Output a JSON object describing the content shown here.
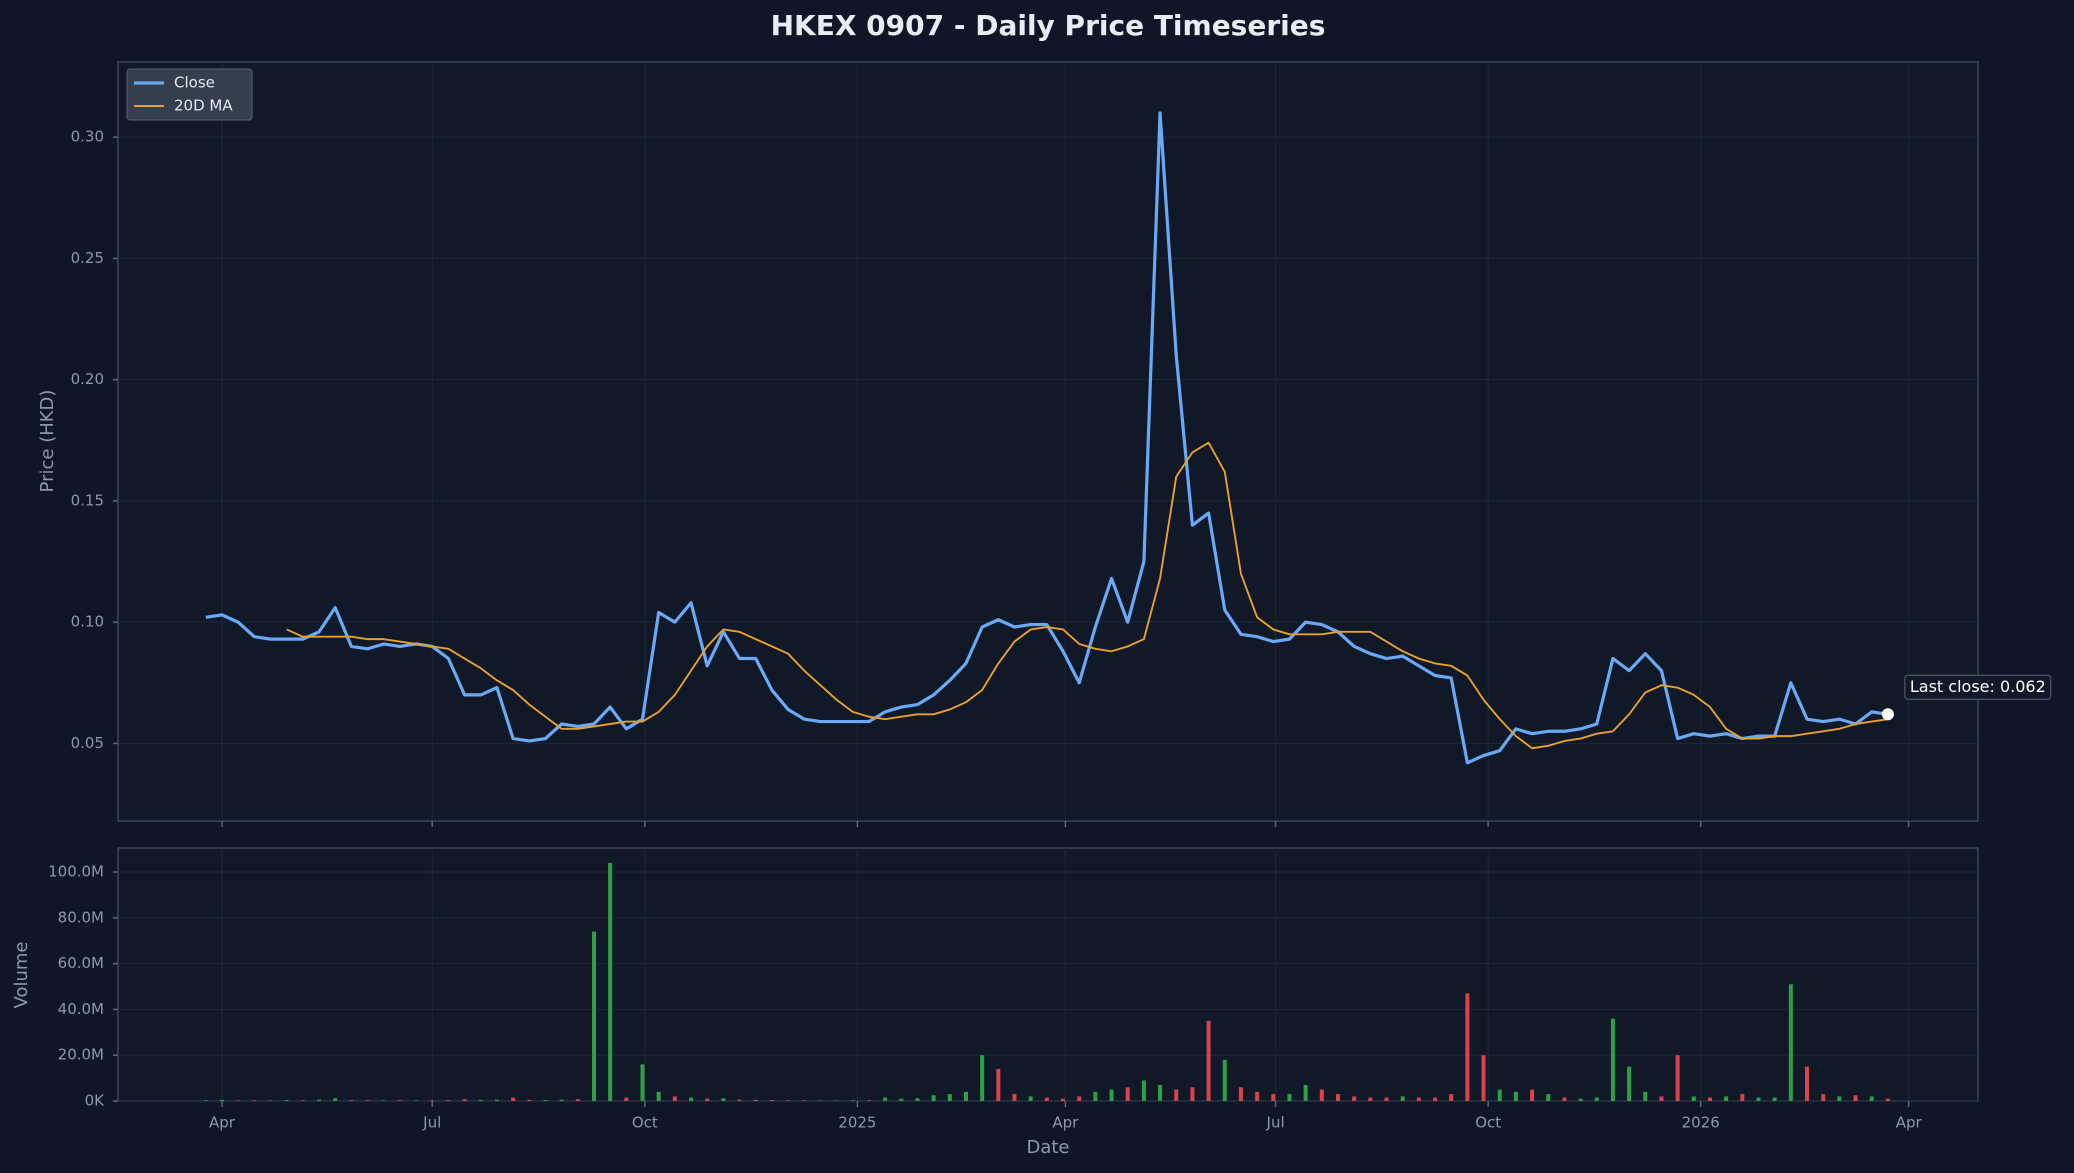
{
  "chart_data": {
    "type": "line",
    "title": "HKEX 0907 - Daily Price Timeseries",
    "xlabel": "Date",
    "ylabel": "Price (HKD)",
    "grid": true,
    "legend": "upper left",
    "xlim": [
      "2024-02-16",
      "2026-05-01"
    ],
    "xticks": [
      {
        "value": "2024-04-01",
        "label": "Apr"
      },
      {
        "value": "2024-07-01",
        "label": "Jul"
      },
      {
        "value": "2024-10-01",
        "label": "Oct"
      },
      {
        "value": "2025-01-01",
        "label": "2025"
      },
      {
        "value": "2025-04-01",
        "label": "Apr"
      },
      {
        "value": "2025-07-01",
        "label": "Jul"
      },
      {
        "value": "2025-10-01",
        "label": "Oct"
      },
      {
        "value": "2026-01-01",
        "label": "2026"
      },
      {
        "value": "2026-04-01",
        "label": "Apr"
      }
    ],
    "ylim": [
      0.018,
      0.331
    ],
    "yticks": [
      0.05,
      {
        "value": 0.1,
        "label": "0.10"
      },
      0.15,
      {
        "value": 0.2,
        "label": "0.20"
      },
      0.25,
      {
        "value": 0.3,
        "label": "0.30"
      }
    ],
    "x": [
      "2024-03-25",
      "2024-04-01",
      "2024-04-08",
      "2024-04-15",
      "2024-04-22",
      "2024-04-29",
      "2024-05-06",
      "2024-05-13",
      "2024-05-20",
      "2024-05-27",
      "2024-06-03",
      "2024-06-10",
      "2024-06-17",
      "2024-06-24",
      "2024-07-01",
      "2024-07-08",
      "2024-07-15",
      "2024-07-22",
      "2024-07-29",
      "2024-08-05",
      "2024-08-12",
      "2024-08-19",
      "2024-08-26",
      "2024-09-02",
      "2024-09-09",
      "2024-09-16",
      "2024-09-23",
      "2024-09-30",
      "2024-10-07",
      "2024-10-14",
      "2024-10-21",
      "2024-10-28",
      "2024-11-04",
      "2024-11-11",
      "2024-11-18",
      "2024-11-25",
      "2024-12-02",
      "2024-12-09",
      "2024-12-16",
      "2024-12-23",
      "2024-12-30",
      "2025-01-06",
      "2025-01-13",
      "2025-01-20",
      "2025-01-27",
      "2025-02-03",
      "2025-02-10",
      "2025-02-17",
      "2025-02-24",
      "2025-03-03",
      "2025-03-10",
      "2025-03-17",
      "2025-03-24",
      "2025-03-31",
      "2025-04-07",
      "2025-04-14",
      "2025-04-21",
      "2025-04-28",
      "2025-05-05",
      "2025-05-12",
      "2025-05-19",
      "2025-05-26",
      "2025-06-02",
      "2025-06-09",
      "2025-06-16",
      "2025-06-23",
      "2025-06-30",
      "2025-07-07",
      "2025-07-14",
      "2025-07-21",
      "2025-07-28",
      "2025-08-04",
      "2025-08-11",
      "2025-08-18",
      "2025-08-25",
      "2025-09-01",
      "2025-09-08",
      "2025-09-15",
      "2025-09-22",
      "2025-09-29",
      "2025-10-06",
      "2025-10-13",
      "2025-10-20",
      "2025-10-27",
      "2025-11-03",
      "2025-11-10",
      "2025-11-17",
      "2025-11-24",
      "2025-12-01",
      "2025-12-08",
      "2025-12-15",
      "2025-12-22",
      "2025-12-29",
      "2026-01-05",
      "2026-01-12",
      "2026-01-19",
      "2026-01-26",
      "2026-02-02",
      "2026-02-09",
      "2026-02-16",
      "2026-02-23",
      "2026-03-02",
      "2026-03-09",
      "2026-03-16",
      "2026-03-23"
    ],
    "series": [
      {
        "name": "Close",
        "color": "#6aa9f5",
        "values": [
          0.102,
          0.103,
          0.1,
          0.094,
          0.093,
          0.093,
          0.093,
          0.096,
          0.106,
          0.09,
          0.089,
          0.091,
          0.09,
          0.091,
          0.09,
          0.085,
          0.07,
          0.07,
          0.073,
          0.052,
          0.051,
          0.052,
          0.058,
          0.057,
          0.058,
          0.065,
          0.056,
          0.06,
          0.104,
          0.1,
          0.108,
          0.082,
          0.096,
          0.085,
          0.085,
          0.072,
          0.064,
          0.06,
          0.059,
          0.059,
          0.059,
          0.059,
          0.063,
          0.065,
          0.066,
          0.07,
          0.076,
          0.083,
          0.098,
          0.101,
          0.098,
          0.099,
          0.099,
          0.088,
          0.075,
          0.098,
          0.118,
          0.1,
          0.125,
          0.31,
          0.21,
          0.14,
          0.145,
          0.105,
          0.095,
          0.094,
          0.092,
          0.093,
          0.1,
          0.099,
          0.096,
          0.09,
          0.087,
          0.085,
          0.086,
          0.082,
          0.078,
          0.077,
          0.042,
          0.045,
          0.047,
          0.056,
          0.054,
          0.055,
          0.055,
          0.056,
          0.058,
          0.085,
          0.08,
          0.087,
          0.08,
          0.052,
          0.054,
          0.053,
          0.054,
          0.052,
          0.053,
          0.053,
          0.075,
          0.06,
          0.059,
          0.06,
          0.058,
          0.063,
          0.062
        ]
      },
      {
        "name": "20D MA",
        "color": "#e8a02a",
        "values": [
          null,
          null,
          null,
          null,
          null,
          0.097,
          0.094,
          0.094,
          0.094,
          0.094,
          0.093,
          0.093,
          0.092,
          0.091,
          0.09,
          0.089,
          0.085,
          0.081,
          0.076,
          0.072,
          0.066,
          0.061,
          0.056,
          0.056,
          0.057,
          0.058,
          0.059,
          0.059,
          0.063,
          0.07,
          0.08,
          0.09,
          0.097,
          0.096,
          0.093,
          0.09,
          0.087,
          0.08,
          0.074,
          0.068,
          0.063,
          0.061,
          0.06,
          0.061,
          0.062,
          0.062,
          0.064,
          0.067,
          0.072,
          0.083,
          0.092,
          0.097,
          0.098,
          0.097,
          0.091,
          0.089,
          0.088,
          0.09,
          0.093,
          0.118,
          0.16,
          0.17,
          0.174,
          0.162,
          0.12,
          0.102,
          0.097,
          0.095,
          0.095,
          0.095,
          0.096,
          0.096,
          0.096,
          0.092,
          0.088,
          0.085,
          0.083,
          0.082,
          0.078,
          0.068,
          0.06,
          0.053,
          0.048,
          0.049,
          0.051,
          0.052,
          0.054,
          0.055,
          0.062,
          0.071,
          0.074,
          0.073,
          0.07,
          0.065,
          0.056,
          0.052,
          0.052,
          0.053,
          0.053,
          0.054,
          0.055,
          0.056,
          0.058,
          0.059,
          0.06
        ]
      }
    ],
    "annotation": "Last close: 0.062",
    "volume": {
      "type": "bar",
      "ylabel": "Volume",
      "ylim": [
        0,
        110500000
      ],
      "yticks": [
        {
          "value": 0,
          "label": "0K"
        },
        {
          "value": 20000000,
          "label": "20.0M"
        },
        {
          "value": 40000000,
          "label": "40.0M"
        },
        {
          "value": 60000000,
          "label": "60.0M"
        },
        {
          "value": 80000000,
          "label": "80.0M"
        },
        {
          "value": 100000000,
          "label": "100.0M"
        }
      ],
      "values": [
        300000,
        500000,
        200000,
        300000,
        200000,
        400000,
        300000,
        600000,
        1200000,
        400000,
        300000,
        200000,
        300000,
        200000,
        300000,
        400000,
        800000,
        500000,
        600000,
        1500000,
        500000,
        400000,
        600000,
        800000,
        74000000,
        104000000,
        1500000,
        16000000,
        4000000,
        2000000,
        1500000,
        1000000,
        1200000,
        600000,
        500000,
        400000,
        300000,
        300000,
        200000,
        200000,
        300000,
        300000,
        1500000,
        1000000,
        1200000,
        2500000,
        3000000,
        4000000,
        20000000,
        14000000,
        3000000,
        2000000,
        1500000,
        1000000,
        2000000,
        4000000,
        5000000,
        6000000,
        9000000,
        7000000,
        5000000,
        6000000,
        35000000,
        18000000,
        6000000,
        4000000,
        3000000,
        3000000,
        7000000,
        5000000,
        3000000,
        2000000,
        1500000,
        1500000,
        2000000,
        1500000,
        1500000,
        3000000,
        47000000,
        20000000,
        5000000,
        4000000,
        5000000,
        3000000,
        1500000,
        1000000,
        1500000,
        36000000,
        15000000,
        4000000,
        2000000,
        20000000,
        2000000,
        1500000,
        2000000,
        3000000,
        1500000,
        1500000,
        51000000,
        15000000,
        3000000,
        2000000,
        2500000,
        2000000,
        1000000
      ],
      "colors": [
        "#2ea043",
        "#2ea043",
        "#d9434b",
        "#d9434b",
        "#d9434b",
        "#2ea043",
        "#d9434b",
        "#2ea043",
        "#2ea043",
        "#d9434b",
        "#d9434b",
        "#2ea043",
        "#d9434b",
        "#2ea043",
        "#d9434b",
        "#d9434b",
        "#d9434b",
        "#2ea043",
        "#2ea043",
        "#d9434b",
        "#d9434b",
        "#2ea043",
        "#2ea043",
        "#d9434b",
        "#2ea043",
        "#2ea043",
        "#d9434b",
        "#2ea043",
        "#2ea043",
        "#d9434b",
        "#2ea043",
        "#d9434b",
        "#2ea043",
        "#d9434b",
        "#d9434b",
        "#d9434b",
        "#d9434b",
        "#d9434b",
        "#d9434b",
        "#2ea043",
        "#2ea043",
        "#d9434b",
        "#2ea043",
        "#2ea043",
        "#2ea043",
        "#2ea043",
        "#2ea043",
        "#2ea043",
        "#2ea043",
        "#d9434b",
        "#d9434b",
        "#2ea043",
        "#d9434b",
        "#d9434b",
        "#d9434b",
        "#2ea043",
        "#2ea043",
        "#d9434b",
        "#2ea043",
        "#2ea043",
        "#d9434b",
        "#d9434b",
        "#d9434b",
        "#2ea043",
        "#d9434b",
        "#d9434b",
        "#d9434b",
        "#2ea043",
        "#2ea043",
        "#d9434b",
        "#d9434b",
        "#d9434b",
        "#d9434b",
        "#d9434b",
        "#2ea043",
        "#d9434b",
        "#d9434b",
        "#d9434b",
        "#d9434b",
        "#d9434b",
        "#2ea043",
        "#2ea043",
        "#d9434b",
        "#2ea043",
        "#d9434b",
        "#2ea043",
        "#2ea043",
        "#2ea043",
        "#2ea043",
        "#2ea043",
        "#d9434b",
        "#d9434b",
        "#2ea043",
        "#d9434b",
        "#2ea043",
        "#d9434b",
        "#2ea043",
        "#2ea043",
        "#2ea043",
        "#d9434b",
        "#d9434b",
        "#2ea043",
        "#d9434b",
        "#2ea043",
        "#d9434b"
      ]
    }
  }
}
